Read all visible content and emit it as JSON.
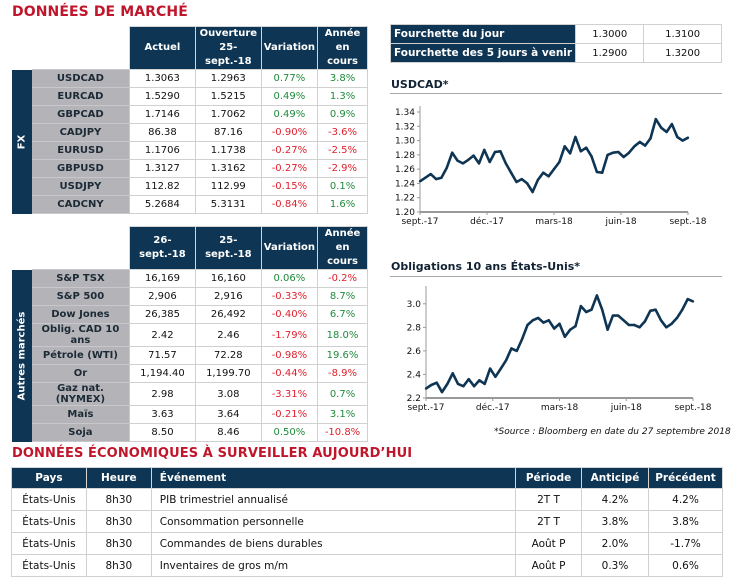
{
  "market": {
    "title": "DONNÉES DE MARCHÉ",
    "fx": {
      "side_label": "FX",
      "headers": [
        "Actuel",
        "Ouverture 25-sept.-18",
        "Variation",
        "Année en cours"
      ],
      "header_lines": [
        [
          "Actuel"
        ],
        [
          "Ouverture",
          "25-sept.-18"
        ],
        [
          "Variation"
        ],
        [
          "Année en",
          "cours"
        ]
      ],
      "rows": [
        {
          "name": "USDCAD",
          "current": "1.3063",
          "open": "1.2963",
          "change": "0.77%",
          "ytd": "3.8%",
          "change_sign": "pos",
          "ytd_sign": "pos"
        },
        {
          "name": "EURCAD",
          "current": "1.5290",
          "open": "1.5215",
          "change": "0.49%",
          "ytd": "1.3%",
          "change_sign": "pos",
          "ytd_sign": "pos"
        },
        {
          "name": "GBPCAD",
          "current": "1.7146",
          "open": "1.7062",
          "change": "0.49%",
          "ytd": "0.9%",
          "change_sign": "pos",
          "ytd_sign": "pos"
        },
        {
          "name": "CADJPY",
          "current": "86.38",
          "open": "87.16",
          "change": "-0.90%",
          "ytd": "-3.6%",
          "change_sign": "neg",
          "ytd_sign": "neg"
        },
        {
          "name": "EURUSD",
          "current": "1.1706",
          "open": "1.1738",
          "change": "-0.27%",
          "ytd": "-2.5%",
          "change_sign": "neg",
          "ytd_sign": "neg"
        },
        {
          "name": "GBPUSD",
          "current": "1.3127",
          "open": "1.3162",
          "change": "-0.27%",
          "ytd": "-2.9%",
          "change_sign": "neg",
          "ytd_sign": "neg"
        },
        {
          "name": "USDJPY",
          "current": "112.82",
          "open": "112.99",
          "change": "-0.15%",
          "ytd": "0.1%",
          "change_sign": "neg",
          "ytd_sign": "pos"
        },
        {
          "name": "CADCNY",
          "current": "5.2684",
          "open": "5.3131",
          "change": "-0.84%",
          "ytd": "1.6%",
          "change_sign": "neg",
          "ytd_sign": "pos"
        }
      ]
    },
    "other": {
      "side_label": "Autres marchés",
      "header_lines": [
        [
          "26-sept.-18"
        ],
        [
          "25-sept.-18"
        ],
        [
          "Variation"
        ],
        [
          "Année en",
          "cours"
        ]
      ],
      "rows": [
        {
          "name": "S&P TSX",
          "current": "16,169",
          "prev": "16,160",
          "change": "0.06%",
          "ytd": "-0.2%",
          "change_sign": "pos",
          "ytd_sign": "neg"
        },
        {
          "name": "S&P 500",
          "current": "2,906",
          "prev": "2,916",
          "change": "-0.33%",
          "ytd": "8.7%",
          "change_sign": "neg",
          "ytd_sign": "pos"
        },
        {
          "name": "Dow Jones",
          "current": "26,385",
          "prev": "26,492",
          "change": "-0.40%",
          "ytd": "6.7%",
          "change_sign": "neg",
          "ytd_sign": "pos"
        },
        {
          "name": "Oblig. CAD 10 ans",
          "current": "2.42",
          "prev": "2.46",
          "change": "-1.79%",
          "ytd": "18.0%",
          "change_sign": "neg",
          "ytd_sign": "pos"
        },
        {
          "name": "Pétrole (WTI)",
          "current": "71.57",
          "prev": "72.28",
          "change": "-0.98%",
          "ytd": "19.6%",
          "change_sign": "neg",
          "ytd_sign": "pos"
        },
        {
          "name": "Or",
          "current": "1,194.40",
          "prev": "1,199.70",
          "change": "-0.44%",
          "ytd": "-8.9%",
          "change_sign": "neg",
          "ytd_sign": "neg"
        },
        {
          "name": "Gaz nat. (NYMEX)",
          "current": "2.98",
          "prev": "3.08",
          "change": "-3.31%",
          "ytd": "0.7%",
          "change_sign": "neg",
          "ytd_sign": "pos"
        },
        {
          "name": "Maïs",
          "current": "3.63",
          "prev": "3.64",
          "change": "-0.21%",
          "ytd": "3.1%",
          "change_sign": "neg",
          "ytd_sign": "pos"
        },
        {
          "name": "Soja",
          "current": "8.50",
          "prev": "8.46",
          "change": "0.50%",
          "ytd": "-10.8%",
          "change_sign": "pos",
          "ytd_sign": "neg"
        }
      ]
    }
  },
  "range_table": {
    "rows": [
      {
        "label": "Fourchette du jour",
        "low": "1.3000",
        "high": "1.3100"
      },
      {
        "label": "Fourchette des 5 jours à venir",
        "low": "1.2900",
        "high": "1.3200"
      }
    ]
  },
  "colors": {
    "navy": "#0e3554",
    "red_title": "#c0162c",
    "positive": "#1e8a3c",
    "negative": "#e0202e",
    "label_gray": "#b4b4b8"
  },
  "chart_data": [
    {
      "type": "line",
      "title": "USDCAD*",
      "xlabel": "",
      "ylabel": "",
      "x_ticks": [
        "sept.-17",
        "déc.-17",
        "mars-18",
        "juin-18",
        "sept.-18"
      ],
      "y_ticks": [
        "1.20",
        "1.22",
        "1.24",
        "1.26",
        "1.28",
        "1.30",
        "1.32",
        "1.34"
      ],
      "ylim": [
        1.2,
        1.34
      ],
      "grid": false,
      "series": [
        {
          "name": "USDCAD",
          "x": [
            0,
            0.02,
            0.04,
            0.06,
            0.08,
            0.1,
            0.12,
            0.14,
            0.16,
            0.18,
            0.2,
            0.22,
            0.24,
            0.26,
            0.28,
            0.3,
            0.32,
            0.34,
            0.36,
            0.38,
            0.4,
            0.42,
            0.44,
            0.46,
            0.48,
            0.5,
            0.52,
            0.54,
            0.56,
            0.58,
            0.6,
            0.62,
            0.64,
            0.66,
            0.68,
            0.7,
            0.72,
            0.74,
            0.76,
            0.78,
            0.8,
            0.82,
            0.84,
            0.86,
            0.88,
            0.9,
            0.92,
            0.94,
            0.96,
            0.98,
            1.0
          ],
          "values": [
            1.243,
            1.248,
            1.253,
            1.246,
            1.248,
            1.262,
            1.283,
            1.272,
            1.268,
            1.273,
            1.279,
            1.268,
            1.287,
            1.27,
            1.284,
            1.285,
            1.268,
            1.255,
            1.242,
            1.246,
            1.24,
            1.228,
            1.245,
            1.255,
            1.25,
            1.26,
            1.27,
            1.292,
            1.282,
            1.305,
            1.285,
            1.29,
            1.278,
            1.256,
            1.255,
            1.28,
            1.283,
            1.284,
            1.277,
            1.283,
            1.292,
            1.298,
            1.293,
            1.303,
            1.33,
            1.318,
            1.312,
            1.323,
            1.305,
            1.3,
            1.304
          ]
        }
      ]
    },
    {
      "type": "line",
      "title": "Obligations 10 ans États-Unis*",
      "xlabel": "",
      "ylabel": "",
      "x_ticks": [
        "sept.-17",
        "déc.-17",
        "mars-18",
        "juin-18",
        "sept.-18"
      ],
      "y_ticks": [
        "2.2",
        "2.4",
        "2.6",
        "2.8",
        "3.0"
      ],
      "ylim": [
        2.2,
        3.1
      ],
      "grid": false,
      "series": [
        {
          "name": "UST 10Y",
          "x": [
            0,
            0.02,
            0.04,
            0.06,
            0.08,
            0.1,
            0.12,
            0.14,
            0.16,
            0.18,
            0.2,
            0.22,
            0.24,
            0.26,
            0.28,
            0.3,
            0.32,
            0.34,
            0.36,
            0.38,
            0.4,
            0.42,
            0.44,
            0.46,
            0.48,
            0.5,
            0.52,
            0.54,
            0.56,
            0.58,
            0.6,
            0.62,
            0.64,
            0.66,
            0.68,
            0.7,
            0.72,
            0.74,
            0.76,
            0.78,
            0.8,
            0.82,
            0.84,
            0.86,
            0.88,
            0.9,
            0.92,
            0.94,
            0.96,
            0.98,
            1.0
          ],
          "values": [
            2.28,
            2.31,
            2.33,
            2.25,
            2.32,
            2.41,
            2.32,
            2.3,
            2.36,
            2.3,
            2.35,
            2.32,
            2.45,
            2.38,
            2.45,
            2.52,
            2.62,
            2.6,
            2.7,
            2.82,
            2.86,
            2.88,
            2.84,
            2.86,
            2.79,
            2.83,
            2.72,
            2.78,
            2.81,
            2.98,
            2.93,
            2.95,
            3.07,
            2.95,
            2.78,
            2.9,
            2.9,
            2.86,
            2.82,
            2.82,
            2.8,
            2.85,
            2.94,
            2.95,
            2.86,
            2.8,
            2.83,
            2.88,
            2.95,
            3.04,
            3.02
          ]
        }
      ]
    }
  ],
  "source_note": "*Source : Bloomberg en date du  27 septembre 2018",
  "economic": {
    "title": "DONNÉES ÉCONOMIQUES À SURVEILLER AUJOURD’HUI",
    "headers": {
      "country": "Pays",
      "time": "Heure",
      "event": "Événement",
      "period": "Période",
      "expected": "Anticipé",
      "previous": "Précédent"
    },
    "rows": [
      {
        "country": "États-Unis",
        "time": "8h30",
        "event": "PIB trimestriel annualisé",
        "period": "2T T",
        "expected": "4.2%",
        "previous": "4.2%"
      },
      {
        "country": "États-Unis",
        "time": "8h30",
        "event": "Consommation personnelle",
        "period": "2T T",
        "expected": "3.8%",
        "previous": "3.8%"
      },
      {
        "country": "États-Unis",
        "time": "8h30",
        "event": "Commandes de biens durables",
        "period": "Août P",
        "expected": "2.0%",
        "previous": "-1.7%"
      },
      {
        "country": "États-Unis",
        "time": "8h30",
        "event": "Inventaires de gros m/m",
        "period": "Août P",
        "expected": "0.3%",
        "previous": "0.6%"
      }
    ]
  }
}
